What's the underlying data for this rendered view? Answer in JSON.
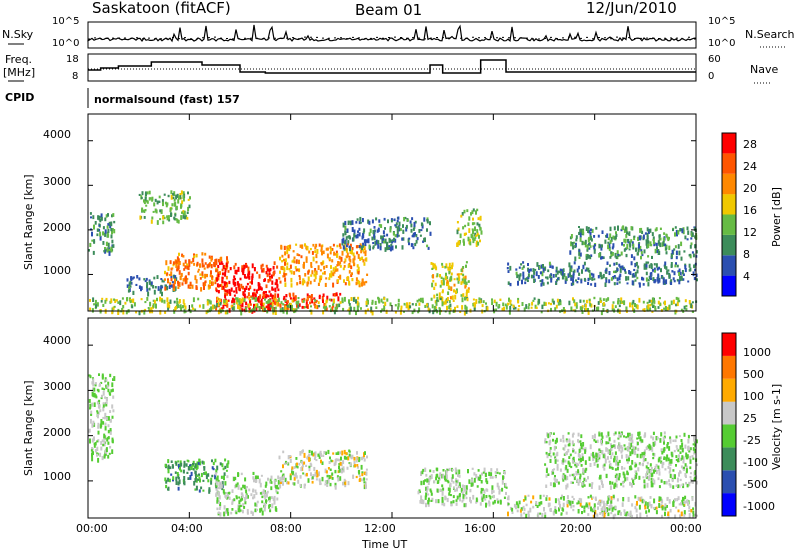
{
  "header": {
    "station": "Saskatoon (fitACF)",
    "beam": "Beam 01",
    "date": "12/Jun/2010"
  },
  "noise_panel": {
    "left_label": "N.Sky",
    "right_label": "N.Search",
    "left_ticks": [
      "10^5",
      "10^0"
    ],
    "right_ticks": [
      "10^5",
      "10^0"
    ]
  },
  "freq_panel": {
    "left_label_1": "Freq.",
    "left_label_2": "[MHz]",
    "right_label": "Nave",
    "left_ticks": [
      "18",
      "8"
    ],
    "right_ticks": [
      "60",
      "0"
    ]
  },
  "cpid": {
    "label": "CPID",
    "value": "normalsound (fast) 157"
  },
  "power_panel": {
    "ylabel": "Slant Range [km]",
    "yticks": [
      "4000",
      "3000",
      "2000",
      "1000"
    ],
    "colorbar_label": "Power [dB]",
    "colorbar_ticks": [
      "28",
      "24",
      "20",
      "16",
      "12",
      "8",
      "4"
    ],
    "colors": [
      "#0000ff",
      "#2b4fb0",
      "#3c8c5a",
      "#66bb44",
      "#f0c800",
      "#ff8800",
      "#ff5500",
      "#ff0000"
    ]
  },
  "velocity_panel": {
    "ylabel": "Slant Range [km]",
    "yticks": [
      "4000",
      "3000",
      "2000",
      "1000"
    ],
    "colorbar_label": "Velocity [m s-1]",
    "colorbar_ticks": [
      "1000",
      "500",
      "100",
      "25",
      "-25",
      "-100",
      "-500",
      "-1000"
    ],
    "colors": [
      "#0000ff",
      "#2b4fb0",
      "#3c8c5a",
      "#55cc33",
      "#c8c8c8",
      "#ffaa00",
      "#ff7700",
      "#ff0000"
    ]
  },
  "xaxis": {
    "ticks": [
      "00:00",
      "04:00",
      "08:00",
      "12:00",
      "16:00",
      "20:00",
      "00:00"
    ],
    "label": "Time UT"
  },
  "chart_data": [
    {
      "type": "heatmap",
      "title": "",
      "xlabel": "Time UT",
      "ylabel": "Slant Range [km]",
      "xlim": [
        0,
        24
      ],
      "ylim": [
        180,
        4600
      ],
      "colorbar": "Power [dB]",
      "colorbar_range": [
        0,
        30
      ],
      "regions": [
        {
          "t0": 0.0,
          "t1": 1.0,
          "r0": 1500,
          "r1": 2400,
          "value": 10
        },
        {
          "t0": 2.0,
          "t1": 4.0,
          "r0": 2200,
          "r1": 2900,
          "value": 12
        },
        {
          "t0": 1.5,
          "t1": 3.5,
          "r0": 600,
          "r1": 1000,
          "value": 8
        },
        {
          "t0": 3.0,
          "t1": 5.5,
          "r0": 700,
          "r1": 1500,
          "value": 22
        },
        {
          "t0": 5.0,
          "t1": 7.5,
          "r0": 200,
          "r1": 1300,
          "value": 28
        },
        {
          "t0": 7.5,
          "t1": 11.0,
          "r0": 800,
          "r1": 1700,
          "value": 20
        },
        {
          "t0": 6.5,
          "t1": 10.0,
          "r0": 250,
          "r1": 600,
          "value": 26
        },
        {
          "t0": 10.0,
          "t1": 13.5,
          "r0": 1600,
          "r1": 2300,
          "value": 8
        },
        {
          "t0": 13.5,
          "t1": 15.0,
          "r0": 500,
          "r1": 1300,
          "value": 16
        },
        {
          "t0": 14.5,
          "t1": 15.5,
          "r0": 1700,
          "r1": 2500,
          "value": 14
        },
        {
          "t0": 16.5,
          "t1": 24.0,
          "r0": 800,
          "r1": 1300,
          "value": 8
        },
        {
          "t0": 19.0,
          "t1": 24.0,
          "r0": 1400,
          "r1": 2100,
          "value": 10
        },
        {
          "t0": 0.0,
          "t1": 24.0,
          "r0": 180,
          "r1": 500,
          "value": 14
        }
      ]
    },
    {
      "type": "heatmap",
      "title": "",
      "xlabel": "Time UT",
      "ylabel": "Slant Range [km]",
      "xlim": [
        0,
        24
      ],
      "ylim": [
        180,
        4600
      ],
      "colorbar": "Velocity [m s-1]",
      "colorbar_range": [
        -1000,
        1000
      ],
      "regions": [
        {
          "t0": 0.0,
          "t1": 1.0,
          "r0": 1500,
          "r1": 3400,
          "value": 0
        },
        {
          "t0": 3.0,
          "t1": 5.5,
          "r0": 800,
          "r1": 1500,
          "value": -300
        },
        {
          "t0": 5.0,
          "t1": 7.5,
          "r0": 300,
          "r1": 1200,
          "value": 0
        },
        {
          "t0": 7.5,
          "t1": 11.0,
          "r0": 900,
          "r1": 1700,
          "value": 100
        },
        {
          "t0": 13.0,
          "t1": 16.5,
          "r0": 500,
          "r1": 1300,
          "value": 0
        },
        {
          "t0": 16.5,
          "t1": 24.0,
          "r0": 250,
          "r1": 700,
          "value": 60
        },
        {
          "t0": 18.0,
          "t1": 24.0,
          "r0": 900,
          "r1": 2100,
          "value": 0
        }
      ]
    }
  ]
}
